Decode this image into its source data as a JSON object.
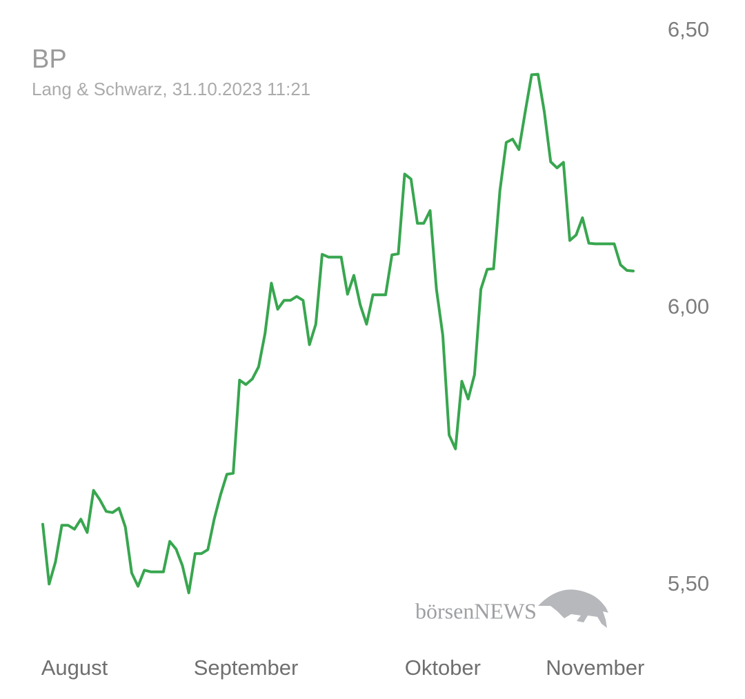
{
  "chart_data": {
    "type": "line",
    "title": "BP",
    "subtitle": "Lang & Schwarz, 31.10.2023 11:21",
    "watermark": "börsenNEWS",
    "color": "#38a64f",
    "values": [
      5.61,
      5.502,
      5.542,
      5.608,
      5.608,
      5.601,
      5.619,
      5.595,
      5.671,
      5.654,
      5.633,
      5.631,
      5.639,
      5.605,
      5.522,
      5.498,
      5.527,
      5.524,
      5.524,
      5.524,
      5.579,
      5.565,
      5.535,
      5.486,
      5.557,
      5.557,
      5.564,
      5.619,
      5.663,
      5.7,
      5.702,
      5.87,
      5.862,
      5.872,
      5.894,
      5.954,
      6.045,
      5.998,
      6.014,
      6.014,
      6.021,
      6.014,
      5.934,
      5.971,
      6.097,
      6.092,
      6.092,
      6.092,
      6.025,
      6.059,
      6.006,
      5.971,
      6.024,
      6.024,
      6.024,
      6.096,
      6.098,
      6.242,
      6.233,
      6.153,
      6.153,
      6.176,
      6.034,
      5.951,
      5.771,
      5.746,
      5.868,
      5.836,
      5.88,
      6.034,
      6.07,
      6.071,
      6.212,
      6.299,
      6.305,
      6.286,
      6.355,
      6.421,
      6.422,
      6.354,
      6.264,
      6.253,
      6.263,
      6.122,
      6.132,
      6.163,
      6.117,
      6.116,
      6.116,
      6.116,
      6.116,
      6.078,
      6.068,
      6.067
    ],
    "xlim": [
      0,
      93
    ],
    "xticks": [
      {
        "value": 5,
        "label": "August"
      },
      {
        "value": 32,
        "label": "September"
      },
      {
        "value": 63,
        "label": "Oktober"
      },
      {
        "value": 87,
        "label": "November"
      }
    ],
    "ylim": [
      5.5,
      6.5
    ],
    "yticks": [
      {
        "value": 5.5,
        "label": "5,50"
      },
      {
        "value": 6.0,
        "label": "6,00"
      },
      {
        "value": 6.5,
        "label": "6,50"
      }
    ],
    "grid": false
  }
}
